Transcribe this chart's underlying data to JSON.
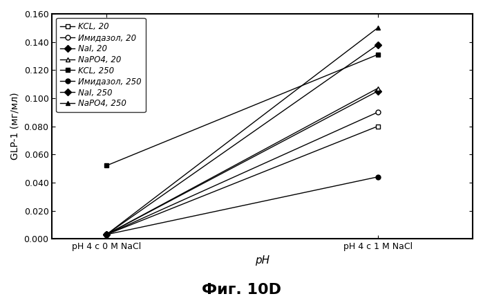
{
  "x_labels": [
    "pH 4 c 0 M NaCl",
    "pH 4 c 1 M NaCl"
  ],
  "x_positions": [
    0,
    1
  ],
  "series": [
    {
      "label": "KCL, 20",
      "marker": "s",
      "y": [
        0.003,
        0.08
      ],
      "mfc": "white"
    },
    {
      "label": "Имидазол, 20",
      "marker": "o",
      "y": [
        0.003,
        0.09
      ],
      "mfc": "white"
    },
    {
      "label": "NaI, 20",
      "marker": "D",
      "y": [
        0.003,
        0.105
      ],
      "mfc": "black"
    },
    {
      "label": "NaPO4, 20",
      "marker": "^",
      "y": [
        0.003,
        0.107
      ],
      "mfc": "white"
    },
    {
      "label": "KCL, 250",
      "marker": "s",
      "y": [
        0.052,
        0.131
      ],
      "mfc": "black"
    },
    {
      "label": "Имидазол, 250",
      "marker": "o",
      "y": [
        0.003,
        0.044
      ],
      "mfc": "black"
    },
    {
      "label": "NaI, 250",
      "marker": "D",
      "y": [
        0.003,
        0.138
      ],
      "mfc": "black"
    },
    {
      "label": "NaPO4, 250",
      "marker": "^",
      "y": [
        0.003,
        0.15
      ],
      "mfc": "black"
    }
  ],
  "ylabel": "GLP-1 (мг/мл)",
  "xlabel": "pH",
  "title": "Фиг. 10D",
  "ylim": [
    0.0,
    0.16
  ],
  "yticks": [
    0.0,
    0.02,
    0.04,
    0.06,
    0.08,
    0.1,
    0.12,
    0.14,
    0.16
  ],
  "legend_loc": "upper left",
  "figsize": [
    6.99,
    4.38
  ],
  "dpi": 100
}
